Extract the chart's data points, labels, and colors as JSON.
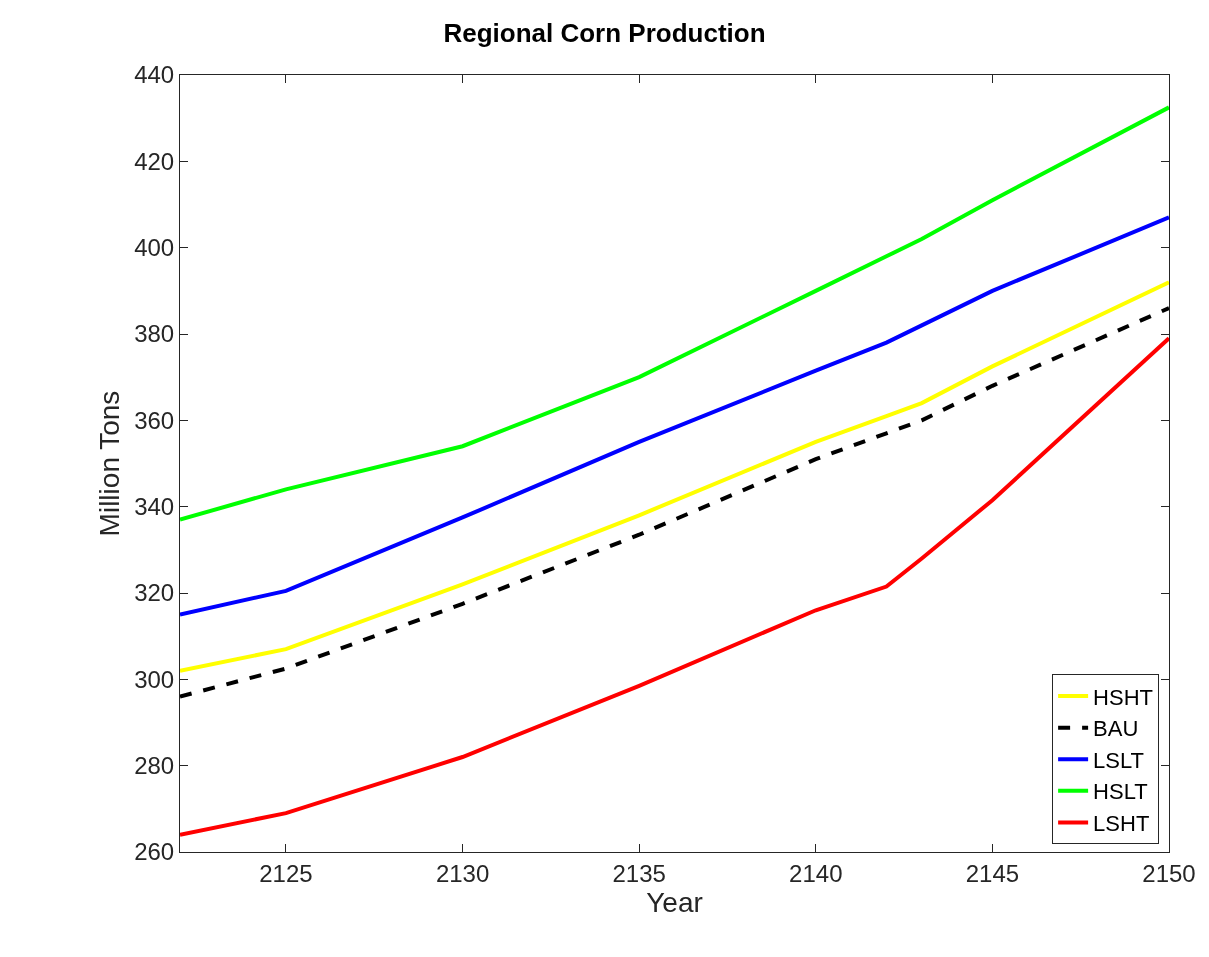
{
  "chart_data": {
    "type": "line",
    "title": "Regional Corn Production",
    "xlabel": "Year",
    "ylabel": "Million Tons",
    "x": [
      2122,
      2125,
      2130,
      2135,
      2140,
      2142,
      2143,
      2145,
      2150
    ],
    "xlim": [
      2122,
      2150
    ],
    "xticks": [
      2125,
      2130,
      2135,
      2140,
      2145,
      2150
    ],
    "ylim": [
      260,
      440
    ],
    "yticks": [
      260,
      280,
      300,
      320,
      340,
      360,
      380,
      400,
      420,
      440
    ],
    "legend": "bottom right",
    "marker": "none",
    "series": [
      {
        "name": "HSHT",
        "color": "#ffff00",
        "line_style": "solid",
        "values": [
          302,
          307,
          322,
          338,
          355,
          361,
          364,
          372.5,
          392
        ]
      },
      {
        "name": "BAU",
        "color": "#000000",
        "line_style": "dashed",
        "values": [
          296,
          302.5,
          317.5,
          333.5,
          351,
          357,
          360,
          368,
          386
        ]
      },
      {
        "name": "LSLT",
        "color": "#0000ff",
        "line_style": "solid",
        "values": [
          315,
          320.5,
          337.5,
          355,
          371.5,
          378,
          382,
          390,
          407
        ]
      },
      {
        "name": "HSLT",
        "color": "#00ff00",
        "line_style": "solid",
        "values": [
          337,
          344,
          354,
          370,
          390,
          398,
          402,
          411,
          432.5
        ]
      },
      {
        "name": "LSHT",
        "color": "#ff0000",
        "line_style": "solid",
        "values": [
          264,
          269,
          282,
          298.5,
          316,
          321.5,
          328,
          341.5,
          379
        ]
      }
    ]
  }
}
